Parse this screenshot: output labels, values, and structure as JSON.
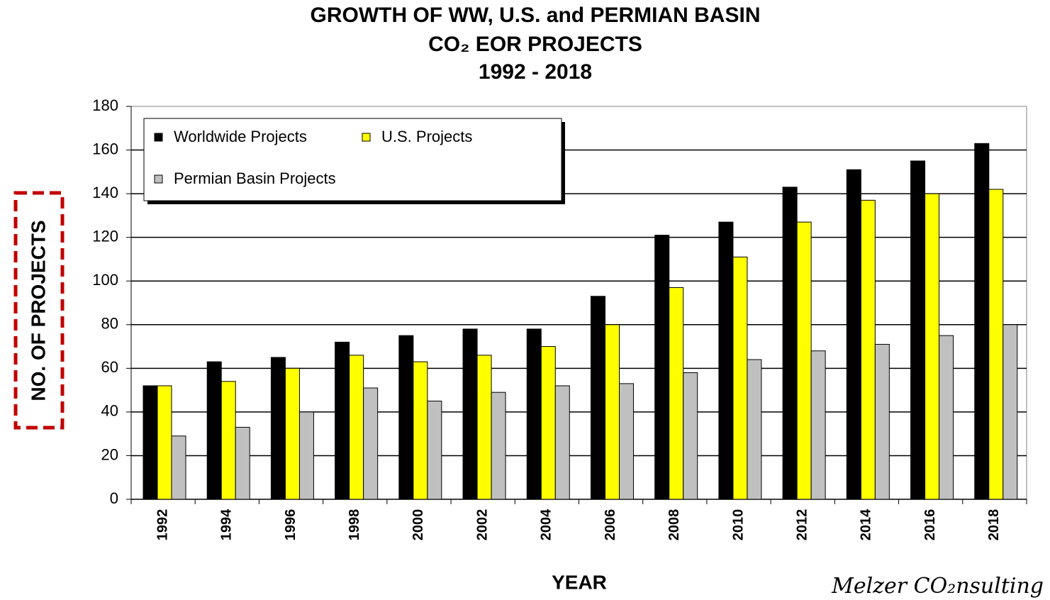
{
  "chart_data": {
    "type": "bar",
    "title": [
      "GROWTH OF WW, U.S. and PERMIAN  BASIN",
      "CO₂ EOR PROJECTS",
      "1992 - 2018"
    ],
    "x_label": "YEAR",
    "y_label": "NO. OF PROJECTS",
    "annotation": "Melzer CO₂nsulting",
    "categories": [
      "1992",
      "1994",
      "1996",
      "1998",
      "2000",
      "2002",
      "2004",
      "2006",
      "2008",
      "2010",
      "2012",
      "2014",
      "2016",
      "2018"
    ],
    "series": [
      {
        "name": "Worldwide  Projects",
        "color": "#000000",
        "values": [
          52,
          63,
          65,
          72,
          75,
          78,
          78,
          93,
          121,
          127,
          143,
          151,
          155,
          163
        ]
      },
      {
        "name": "U.S.  Projects",
        "color": "#ffff00",
        "values": [
          52,
          54,
          60,
          66,
          63,
          66,
          70,
          80,
          97,
          111,
          127,
          137,
          140,
          142
        ]
      },
      {
        "name": "Permian Basin  Projects",
        "color": "#c0c0c0",
        "values": [
          29,
          33,
          40,
          51,
          45,
          49,
          52,
          53,
          58,
          64,
          68,
          71,
          75,
          80
        ]
      }
    ],
    "ylim": [
      0,
      180
    ],
    "yticks": [
      0,
      20,
      40,
      60,
      80,
      100,
      120,
      140,
      160,
      180
    ],
    "grid": true,
    "legend": "upper left"
  }
}
